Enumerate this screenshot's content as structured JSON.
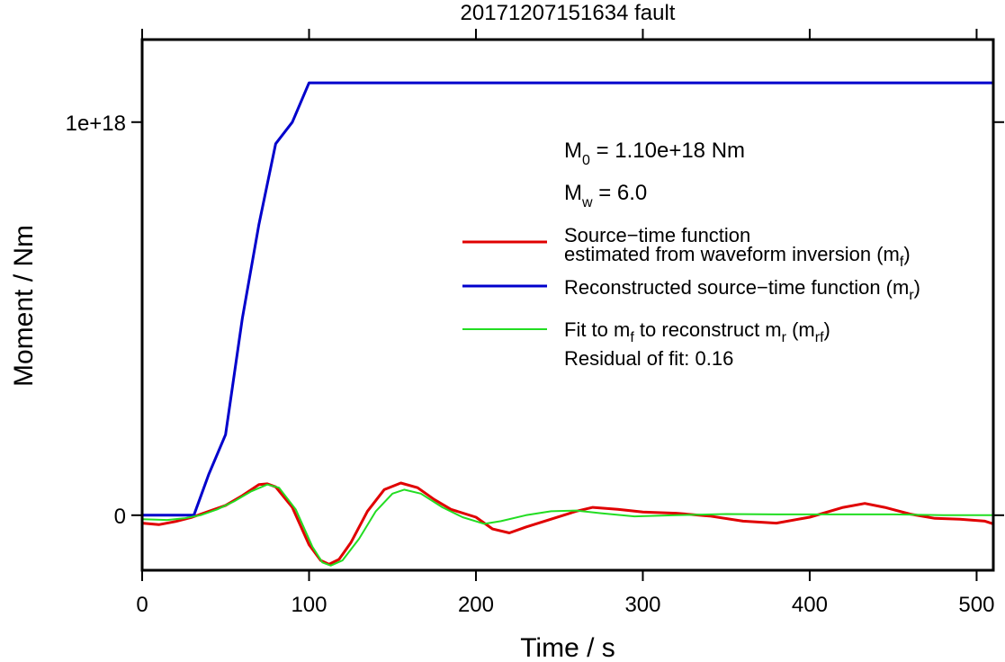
{
  "chart_data": {
    "type": "line",
    "title": "20171207151634 fault",
    "xlabel": "Time / s",
    "ylabel": "Moment / Nm",
    "xlim": [
      0,
      510
    ],
    "ylim": [
      -1.4e+17,
      1.21e+18
    ],
    "x_ticks": [
      0,
      100,
      200,
      300,
      400,
      500
    ],
    "x_tick_labels": [
      "0",
      "100",
      "200",
      "300",
      "400",
      "500"
    ],
    "y_ticks": [
      0,
      1e+18
    ],
    "y_tick_labels": [
      "0",
      "1e+18"
    ],
    "grid": false,
    "legend_position": "right",
    "annotations": {
      "m0": {
        "prefix": "M",
        "sub": "0",
        "text": " = 1.10e+18 Nm"
      },
      "mw": {
        "prefix": "M",
        "sub": "w",
        "text": " = 6.0"
      },
      "residual": "Residual of fit: 0.16"
    },
    "series": [
      {
        "key": "mf",
        "color": "#e00000",
        "legend": {
          "line1": "Source−time function",
          "line2_before": "estimated from waveform inversion (m",
          "line2_sub": "f",
          "line2_after": ")"
        },
        "points": [
          [
            0,
            -2e+16
          ],
          [
            10,
            -2.4e+16
          ],
          [
            20,
            -1.6e+16
          ],
          [
            30,
            -5000000000000000.0
          ],
          [
            40,
            1e+16
          ],
          [
            50,
            2.5e+16
          ],
          [
            60,
            5e+16
          ],
          [
            70,
            7.8e+16
          ],
          [
            75,
            8e+16
          ],
          [
            80,
            7.2e+16
          ],
          [
            90,
            2e+16
          ],
          [
            100,
            -7.5e+16
          ],
          [
            107,
            -1.15e+17
          ],
          [
            112,
            -1.25e+17
          ],
          [
            118,
            -1.12e+17
          ],
          [
            125,
            -7e+16
          ],
          [
            135,
            1e+16
          ],
          [
            145,
            6.5e+16
          ],
          [
            155,
            8.2e+16
          ],
          [
            165,
            7e+16
          ],
          [
            175,
            4e+16
          ],
          [
            185,
            1.5e+16
          ],
          [
            200,
            -5000000000000000.0
          ],
          [
            210,
            -3.5e+16
          ],
          [
            220,
            -4.5e+16
          ],
          [
            230,
            -3e+16
          ],
          [
            245,
            -1e+16
          ],
          [
            260,
            1e+16
          ],
          [
            270,
            2e+16
          ],
          [
            285,
            1.5e+16
          ],
          [
            300,
            8000000000000000.0
          ],
          [
            320,
            5000000000000000.0
          ],
          [
            340,
            -2000000000000000.0
          ],
          [
            360,
            -1.5e+16
          ],
          [
            380,
            -2e+16
          ],
          [
            400,
            -5000000000000000.0
          ],
          [
            420,
            2e+16
          ],
          [
            433,
            3e+16
          ],
          [
            445,
            2e+16
          ],
          [
            460,
            3000000000000000.0
          ],
          [
            475,
            -8000000000000000.0
          ],
          [
            490,
            -1e+16
          ],
          [
            505,
            -1.5e+16
          ],
          [
            510,
            -2.2e+16
          ]
        ]
      },
      {
        "key": "mr",
        "color": "#0000cc",
        "legend": {
          "line1_before": "Reconstructed source−time function (m",
          "line1_sub": "r",
          "line1_after": ")"
        },
        "points": [
          [
            0,
            0
          ],
          [
            31,
            0
          ],
          [
            40,
            1.05e+17
          ],
          [
            50,
            2.05e+17
          ],
          [
            60,
            5e+17
          ],
          [
            70,
            7.4e+17
          ],
          [
            80,
            9.45e+17
          ],
          [
            90,
            1e+18
          ],
          [
            100,
            1.1e+18
          ],
          [
            510,
            1.1e+18
          ]
        ]
      },
      {
        "key": "mrf",
        "color": "#22dd22",
        "legend": {
          "line1_a": "Fit to m",
          "line1_sub1": "f",
          "line1_b": " to reconstruct m",
          "line1_sub2": "r",
          "line1_c": " (m",
          "line1_sub3": "rf",
          "line1_d": ")"
        },
        "points": [
          [
            0,
            -1e+16
          ],
          [
            15,
            -1.2e+16
          ],
          [
            25,
            -8000000000000000.0
          ],
          [
            35,
            0
          ],
          [
            45,
            1.5e+16
          ],
          [
            55,
            3.5e+16
          ],
          [
            65,
            6e+16
          ],
          [
            75,
            7.8e+16
          ],
          [
            82,
            7e+16
          ],
          [
            92,
            1.5e+16
          ],
          [
            102,
            -8e+16
          ],
          [
            108,
            -1.2e+17
          ],
          [
            113,
            -1.28e+17
          ],
          [
            120,
            -1.15e+17
          ],
          [
            130,
            -6e+16
          ],
          [
            140,
            1e+16
          ],
          [
            150,
            5.5e+16
          ],
          [
            157,
            6.5e+16
          ],
          [
            167,
            5.5e+16
          ],
          [
            180,
            2e+16
          ],
          [
            192,
            -5000000000000000.0
          ],
          [
            205,
            -2.2e+16
          ],
          [
            215,
            -1.5e+16
          ],
          [
            230,
            0
          ],
          [
            245,
            1e+16
          ],
          [
            260,
            1.2e+16
          ],
          [
            275,
            5000000000000000.0
          ],
          [
            295,
            -3000000000000000.0
          ],
          [
            320,
            0
          ],
          [
            350,
            3000000000000000.0
          ],
          [
            380,
            2000000000000000.0
          ],
          [
            420,
            2000000000000000.0
          ],
          [
            450,
            2000000000000000.0
          ],
          [
            480,
            0
          ],
          [
            510,
            0
          ]
        ]
      }
    ]
  }
}
